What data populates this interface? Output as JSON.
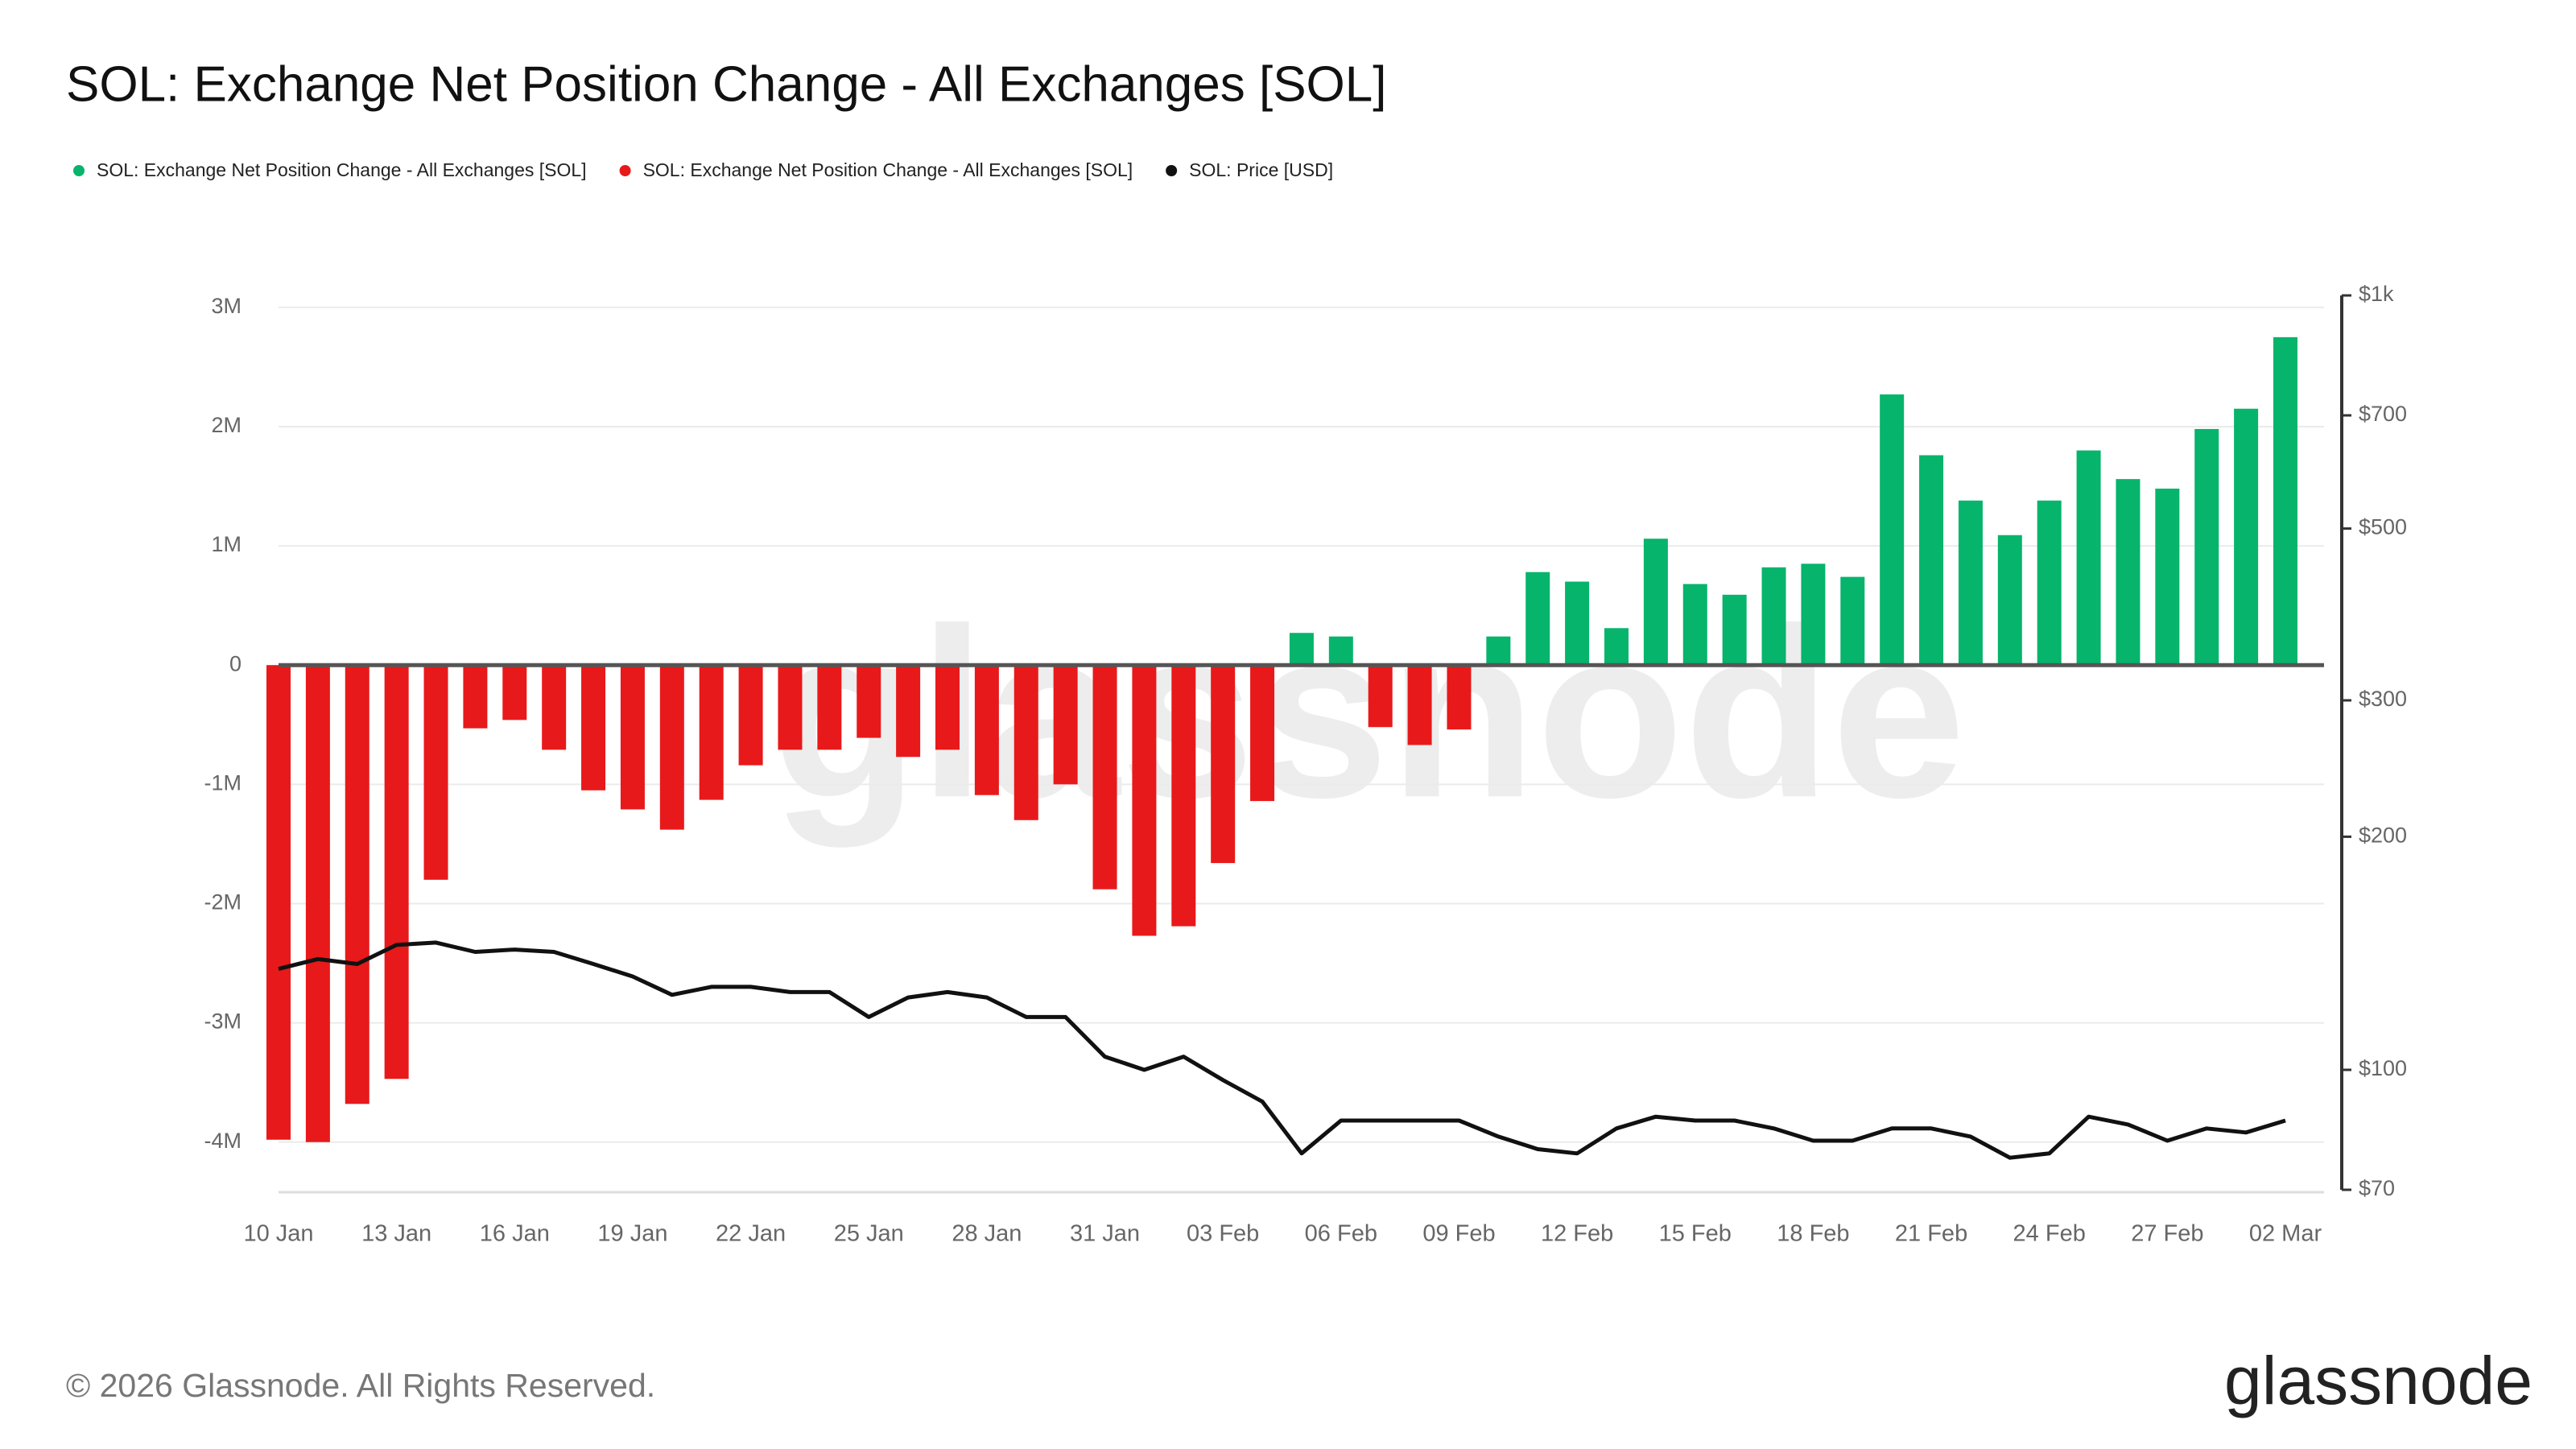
{
  "chart_data": {
    "type": "bar",
    "title": "SOL: Exchange Net Position Change - All Exchanges [SOL]",
    "watermark": "glassnode",
    "footer": "© 2026 Glassnode. All Rights Reserved.",
    "logo": "glassnode",
    "categories": [
      "10 Jan",
      null,
      null,
      "13 Jan",
      null,
      null,
      "16 Jan",
      null,
      null,
      "19 Jan",
      null,
      null,
      "22 Jan",
      null,
      null,
      "25 Jan",
      null,
      null,
      "28 Jan",
      null,
      null,
      "31 Jan",
      null,
      null,
      "03 Feb",
      null,
      null,
      "06 Feb",
      null,
      null,
      "09 Feb",
      null,
      null,
      "12 Feb",
      null,
      null,
      "15 Feb",
      null,
      null,
      "18 Feb",
      null,
      null,
      "21 Feb",
      null,
      null,
      "24 Feb",
      null,
      null,
      "27 Feb",
      null,
      null,
      "02 Mar"
    ],
    "series": [
      {
        "name": "SOL: Exchange Net Position Change - All Exchanges [SOL]",
        "color": "#06b46c",
        "values": [
          null,
          null,
          null,
          null,
          null,
          null,
          null,
          null,
          null,
          null,
          null,
          null,
          null,
          null,
          null,
          null,
          null,
          null,
          null,
          null,
          null,
          null,
          null,
          null,
          null,
          null,
          270000,
          240000,
          null,
          null,
          null,
          240000,
          780000,
          700000,
          310000,
          1060000,
          680000,
          590000,
          820000,
          850000,
          740000,
          2270000,
          1760000,
          1380000,
          1090000,
          1380000,
          1800000,
          1560000,
          1480000,
          1980000,
          2150000,
          2750000
        ]
      },
      {
        "name": "SOL: Exchange Net Position Change - All Exchanges [SOL]",
        "color": "#e8191a",
        "values": [
          -3980000,
          -4000000,
          -3680000,
          -3470000,
          -1800000,
          -530000,
          -460000,
          -710000,
          -1050000,
          -1210000,
          -1380000,
          -1130000,
          -840000,
          -710000,
          -710000,
          -610000,
          -770000,
          -710000,
          -1090000,
          -1300000,
          -1000000,
          -1880000,
          -2270000,
          -2190000,
          -1660000,
          -1140000,
          null,
          null,
          -520000,
          -670000,
          -540000,
          null,
          null,
          null,
          null,
          null,
          null,
          null,
          null,
          null,
          null,
          null,
          null,
          null,
          null,
          null,
          null,
          null,
          null,
          null,
          null,
          null
        ]
      },
      {
        "name": "SOL: Price [USD]",
        "color": "#111111",
        "type": "line",
        "axis": "y2",
        "values": [
          135,
          139,
          137,
          145,
          146,
          142,
          143,
          142,
          137,
          132,
          125,
          128,
          128,
          126,
          126,
          117,
          124,
          126,
          124,
          117,
          117,
          104,
          100,
          104,
          97,
          91,
          78,
          86,
          86,
          86,
          86,
          82,
          79,
          78,
          84,
          87,
          86,
          86,
          84,
          81,
          81,
          84,
          84,
          82,
          77,
          78,
          87,
          85,
          81,
          84,
          83,
          86
        ]
      }
    ],
    "ylim": [
      -4400000,
      3100000
    ],
    "yticks": [
      {
        "value": 3000000,
        "label": "3M"
      },
      {
        "value": 2000000,
        "label": "2M"
      },
      {
        "value": 1000000,
        "label": "1M"
      },
      0,
      {
        "value": -1000000,
        "label": "-1M"
      },
      {
        "value": -2000000,
        "label": "-2M"
      },
      {
        "value": -3000000,
        "label": "-3M"
      },
      {
        "value": -4000000,
        "label": "-4M"
      }
    ],
    "y2lim": [
      70,
      1000
    ],
    "y2scale": "log",
    "y2ticks": [
      {
        "value": 1000,
        "label": "$1k"
      },
      {
        "value": 700,
        "label": "$700"
      },
      {
        "value": 500,
        "label": "$500"
      },
      {
        "value": 300,
        "label": "$300"
      },
      {
        "value": 200,
        "label": "$200"
      },
      {
        "value": 100,
        "label": "$100"
      },
      {
        "value": 70,
        "label": "$70"
      }
    ],
    "grid": true
  }
}
